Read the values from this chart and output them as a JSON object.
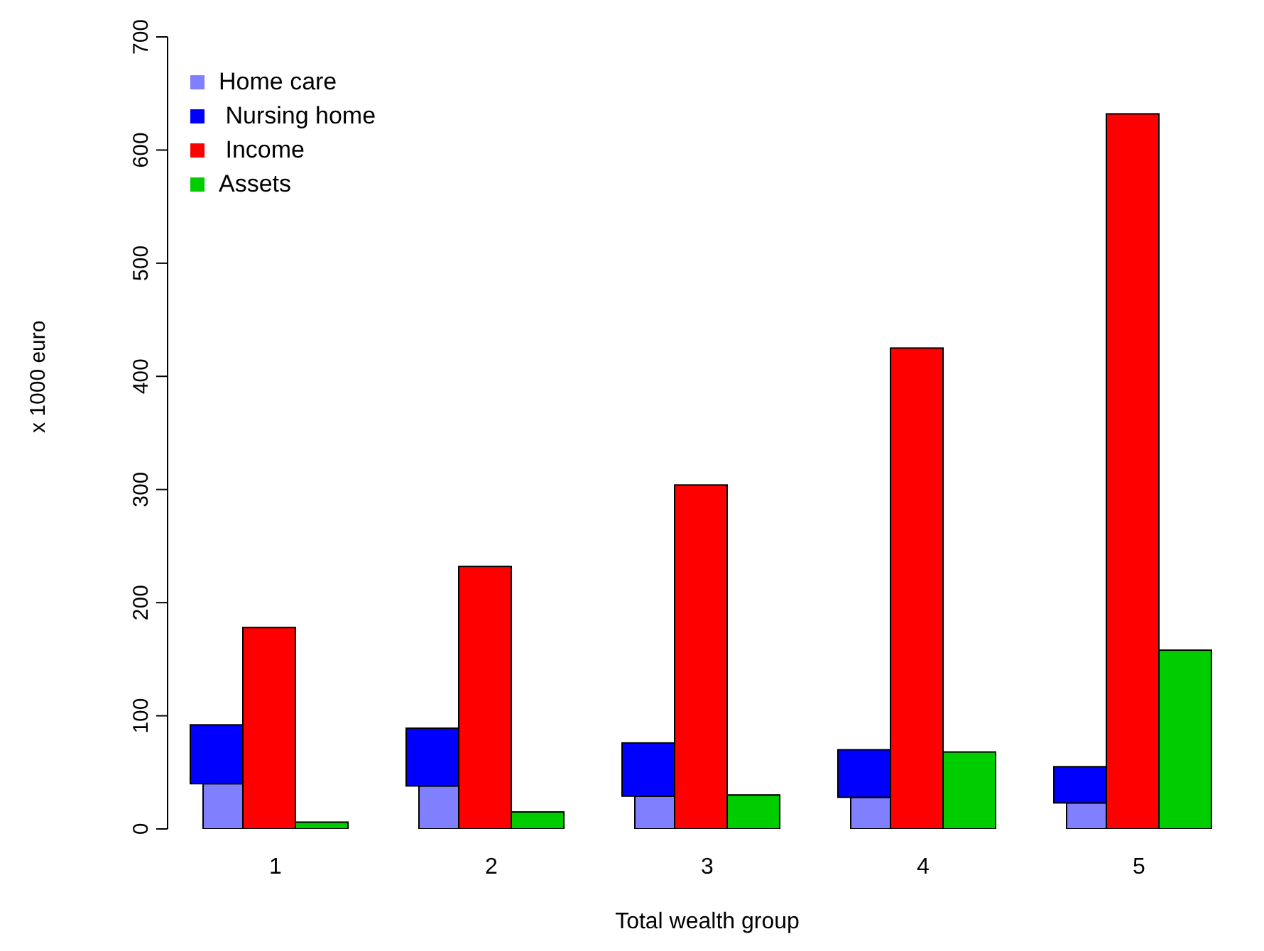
{
  "chart_data": {
    "type": "bar",
    "xlabel": "Total wealth group",
    "ylabel": "x 1000 euro",
    "categories": [
      "1",
      "2",
      "3",
      "4",
      "5"
    ],
    "ylim": [
      0,
      700
    ],
    "yticks": [
      0,
      100,
      200,
      300,
      400,
      500,
      600,
      700
    ],
    "legend": "top left",
    "series": [
      {
        "name": "Home care",
        "color": "#8080ff",
        "values": [
          40,
          38,
          29,
          28,
          23
        ]
      },
      {
        "name": " Nursing home",
        "color": "#0000ff",
        "base": [
          40,
          38,
          29,
          28,
          23
        ],
        "values": [
          52,
          51,
          47,
          42,
          32
        ]
      },
      {
        "name": " Income",
        "color": "#ff0000",
        "values": [
          178,
          232,
          304,
          425,
          632
        ]
      },
      {
        "name": "Assets",
        "color": "#00cd00",
        "values": [
          6,
          15,
          30,
          68,
          158
        ]
      }
    ]
  }
}
